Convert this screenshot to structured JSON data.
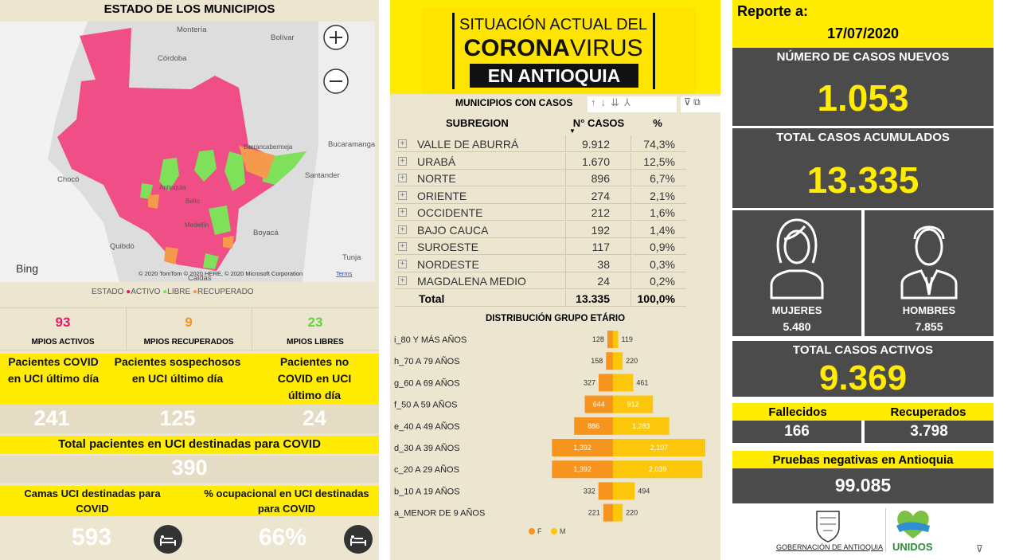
{
  "map_panel": {
    "title": "ESTADO DE LOS MUNICIPIOS",
    "labels": [
      "Montería",
      "Bolívar",
      "Córdoba",
      "Bucaramanga",
      "Chocó",
      "Santander",
      "Antioquia",
      "Bello",
      "Medellín",
      "Boyacá",
      "Quibdó",
      "Tunja",
      "Caldas",
      "Barrancabermeja"
    ],
    "bing": "Bing",
    "attribution": "© 2020 TomTom © 2020 HERE, © 2020 Microsoft Corporation",
    "terms": "Terms"
  },
  "legend": {
    "title": "ESTADO",
    "items": [
      "ACTIVO",
      "LIBRE",
      "RECUPERADO"
    ]
  },
  "municipios": [
    {
      "value": "93",
      "label": "MPIOS ACTIVOS"
    },
    {
      "value": "9",
      "label": "MPIOS RECUPERADOS"
    },
    {
      "value": "23",
      "label": "MPIOS LIBRES"
    }
  ],
  "uci": {
    "cards": [
      {
        "label": "Pacientes COVID en UCI último día",
        "value": "241"
      },
      {
        "label": "Pacientes sospechosos en UCI último día",
        "value": "125"
      },
      {
        "label": "Pacientes no COVID en UCI último día",
        "value": "24"
      }
    ],
    "total": {
      "label": "Total pacientes en UCI destinadas para COVID",
      "value": "390"
    },
    "beds": {
      "label": "Camas UCI destinadas para COVID",
      "value": "593"
    },
    "occupancy": {
      "label": "% ocupacional en UCI destinadas para COVID",
      "value": "66%"
    }
  },
  "header": {
    "line1": "SITUACIÓN ACTUAL DEL",
    "corona": "CORONA",
    "virus": "VIRUS",
    "line3": "EN ANTIOQUIA"
  },
  "table": {
    "title": "MUNICIPIOS CON CASOS",
    "columns": [
      "SUBREGION",
      "N° CASOS",
      "%"
    ],
    "rows": [
      [
        "VALLE DE ABURRÁ",
        "9.912",
        "74,3%"
      ],
      [
        "URABÁ",
        "1.670",
        "12,5%"
      ],
      [
        "NORTE",
        "896",
        "6,7%"
      ],
      [
        "ORIENTE",
        "274",
        "2,1%"
      ],
      [
        "OCCIDENTE",
        "212",
        "1,6%"
      ],
      [
        "BAJO CAUCA",
        "192",
        "1,4%"
      ],
      [
        "SUROESTE",
        "117",
        "0,9%"
      ],
      [
        "NORDESTE",
        "38",
        "0,3%"
      ],
      [
        "MAGDALENA MEDIO",
        "24",
        "0,2%"
      ]
    ],
    "total": [
      "Total",
      "13.335",
      "100,0%"
    ]
  },
  "chart_data": {
    "type": "pyramid",
    "title": "DISTRIBUCIÓN GRUPO ETÁRIO",
    "categories": [
      "i_80 Y MÁS AÑOS",
      "h_70 A 79 AÑOS",
      "g_60 A 69 AÑOS",
      "f_50 A 59 AÑOS",
      "e_40 A 49 AÑOS",
      "d_30 A 39 AÑOS",
      "c_20 A 29 AÑOS",
      "b_10 A 19 AÑOS",
      "a_MENOR DE 9 AÑOS"
    ],
    "series": [
      {
        "name": "F",
        "color": "#f7941d",
        "values": [
          128,
          158,
          327,
          644,
          886,
          1392,
          1392,
          332,
          221
        ],
        "value_labels": [
          "128",
          "158",
          "327",
          "644",
          "886",
          "1,392",
          "1,392",
          "332",
          "221"
        ]
      },
      {
        "name": "M",
        "color": "#fcc60a",
        "values": [
          119,
          220,
          461,
          912,
          1283,
          2107,
          2039,
          494,
          220
        ],
        "value_labels": [
          "119",
          "220",
          "461",
          "912",
          "1,283",
          "2,107",
          "2,039",
          "494",
          "220"
        ]
      }
    ]
  },
  "report": {
    "label": "Reporte a:",
    "date": "17/07/2020",
    "new_label": "NÚMERO DE CASOS NUEVOS",
    "new_value": "1.053",
    "total_label": "TOTAL CASOS ACUMULADOS",
    "total_value": "13.335",
    "women_label": "MUJERES",
    "women_value": "5.480",
    "men_label": "HOMBRES",
    "men_value": "7.855",
    "active_label": "TOTAL CASOS ACTIVOS",
    "active_value": "9.369",
    "deaths_label": "Fallecidos",
    "deaths_value": "166",
    "recovered_label": "Recuperados",
    "recovered_value": "3.798",
    "negative_label": "Pruebas negativas en Antioquia",
    "negative_value": "99.085",
    "gov_logo": "GOBERNACIÓN DE ANTIOQUIA",
    "unidos": "UNIDOS"
  }
}
